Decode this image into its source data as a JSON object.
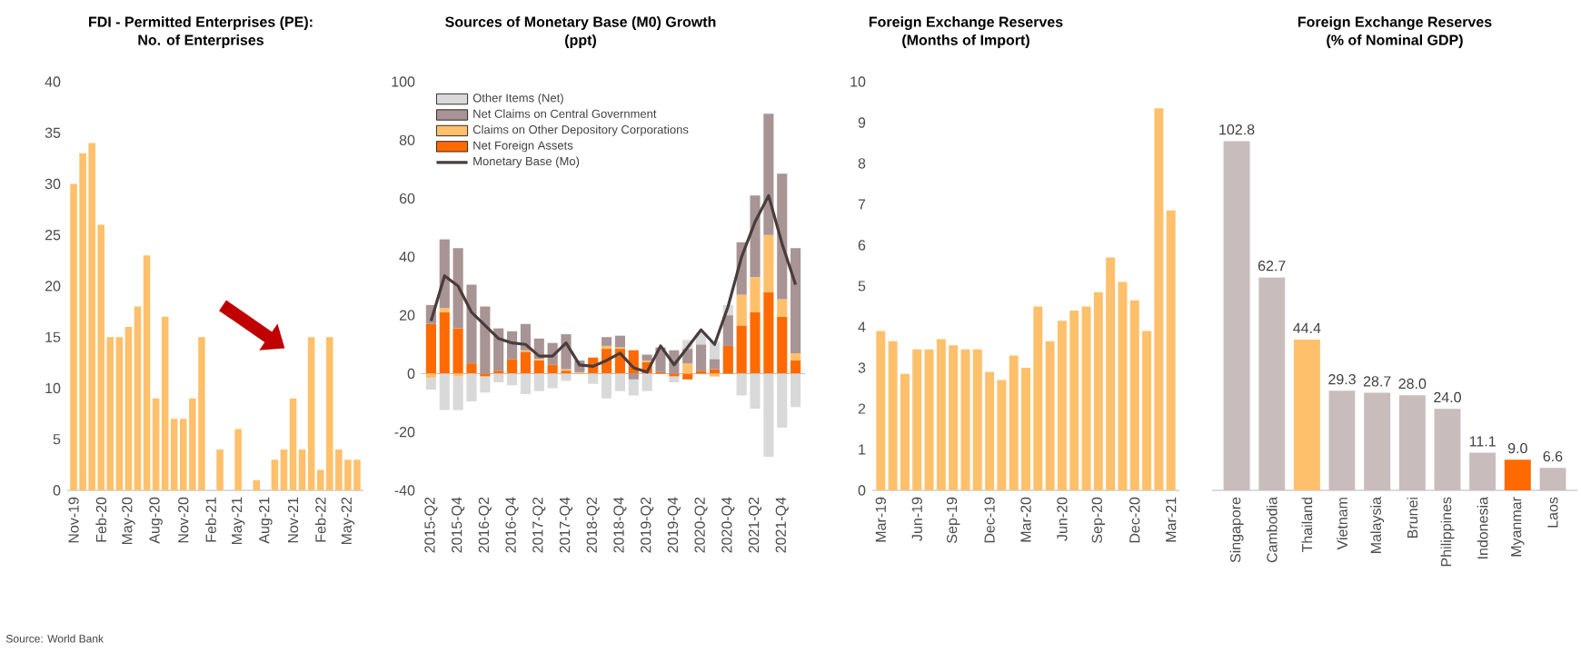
{
  "chart_data": [
    {
      "type": "bar",
      "title": "FDI - Permitted Enterprises (PE):",
      "subtitle": "No. of Enterprises",
      "categories": [
        "Nov-19",
        null,
        null,
        "Feb-20",
        null,
        null,
        "May-20",
        null,
        null,
        "Aug-20",
        null,
        null,
        "Nov-20",
        null,
        null,
        "Feb-21",
        null,
        null,
        "May-21",
        null,
        null,
        "Aug-21",
        null,
        null,
        "Nov-21",
        null,
        null,
        "Feb-22",
        null,
        null,
        "May-22",
        null
      ],
      "values": [
        30,
        33,
        34,
        26,
        15,
        15,
        16,
        18,
        23,
        9,
        17,
        7,
        7,
        9,
        15,
        0,
        4,
        0,
        6,
        0,
        1,
        0,
        3,
        4,
        9,
        4,
        15,
        2,
        15,
        4,
        3,
        3
      ],
      "color": "#ffc06b",
      "ylim": [
        0,
        40
      ],
      "yticks": [
        0,
        5,
        10,
        15,
        20,
        25,
        30,
        35,
        40
      ],
      "annotations": [
        "Source: World Bank"
      ]
    },
    {
      "type": "bar",
      "title": "Sources of Monetary Base (M0) Growth",
      "subtitle": "(ppt)",
      "stacked": true,
      "legend": "top left",
      "categories": [
        "2015-Q2",
        null,
        "2015-Q4",
        null,
        "2016-Q2",
        null,
        "2016-Q4",
        null,
        "2017-Q2",
        null,
        "2017-Q4",
        null,
        "2018-Q2",
        null,
        "2018-Q4",
        null,
        "2019-Q2",
        null,
        "2019-Q4",
        null,
        "2020-Q2",
        null,
        "2020-Q4",
        null,
        "2021-Q2",
        null,
        "2021-Q4",
        null
      ],
      "series": [
        {
          "name": "Net Foreign Assets",
          "color": "#ff6a00",
          "values": [
            17,
            21,
            15.5,
            3.5,
            -1,
            1,
            5,
            7.5,
            4.5,
            3,
            1,
            0,
            5.5,
            8.5,
            8.5,
            8,
            4,
            0.5,
            -1,
            -2,
            1,
            1.5,
            9.5,
            16.5,
            21,
            28,
            19.5,
            4.5
          ]
        },
        {
          "name": "Claims on Other Depository Corporations",
          "color": "#ffc06b",
          "values": [
            -1.5,
            1.5,
            -1,
            0,
            0,
            0,
            0,
            0.5,
            0.5,
            0,
            0.5,
            0.5,
            0,
            1,
            0.5,
            0,
            0.5,
            0,
            0,
            3.5,
            0,
            -1,
            0,
            10.5,
            12,
            19.5,
            6,
            2.5
          ]
        },
        {
          "name": "Net Claims on Central Government",
          "color": "#a89494",
          "values": [
            6.5,
            23.5,
            27.5,
            27,
            23,
            14.5,
            9.5,
            9,
            7,
            7.5,
            12,
            4,
            0,
            3,
            4,
            -2,
            2,
            8.5,
            8,
            5,
            9,
            3.5,
            10.5,
            18,
            28,
            41.5,
            43,
            36
          ]
        },
        {
          "name": "Other Items (Net)",
          "color": "#d9d9d9",
          "values": [
            -4,
            -12.5,
            -11.5,
            -9.5,
            -5.5,
            -3,
            -4,
            -7,
            -6,
            -5,
            -2.5,
            null,
            -3.5,
            -8.5,
            -6,
            -5.5,
            -6,
            null,
            -2,
            3,
            4,
            6,
            3.5,
            -7.5,
            -12,
            -28.5,
            -18.5,
            -11.5
          ]
        },
        {
          "name": "Monetary Base (Mo)",
          "type": "line",
          "color": "#4a3c3c",
          "values": [
            18,
            33.5,
            30,
            21,
            16.5,
            12,
            10.5,
            10,
            6,
            6,
            10.5,
            3,
            2.5,
            4.5,
            7,
            2,
            0.5,
            9.5,
            3,
            9,
            15,
            10,
            23,
            40,
            52,
            61,
            44.5,
            30.5
          ]
        }
      ],
      "ylim": [
        -40,
        100
      ],
      "yticks": [
        -40,
        -20,
        0,
        20,
        40,
        60,
        80,
        100
      ]
    },
    {
      "type": "bar",
      "title": "Foreign Exchange Reserves",
      "subtitle": "(Months of Import)",
      "categories": [
        "Mar-19",
        null,
        null,
        "Jun-19",
        null,
        null,
        "Sep-19",
        null,
        null,
        "Dec-19",
        null,
        null,
        "Mar-20",
        null,
        null,
        "Jun-20",
        null,
        null,
        "Sep-20",
        null,
        null,
        "Dec-20",
        null,
        null,
        "Mar-21"
      ],
      "values": [
        3.9,
        3.65,
        2.85,
        3.45,
        3.45,
        3.7,
        3.55,
        3.45,
        3.45,
        2.9,
        2.7,
        3.3,
        3.0,
        4.5,
        3.65,
        4.15,
        4.4,
        4.5,
        4.85,
        5.7,
        5.1,
        4.65,
        3.9,
        9.35,
        6.85
      ],
      "color": "#ffc06b",
      "ylim": [
        0,
        10
      ],
      "yticks": [
        0,
        1,
        2,
        3,
        4,
        5,
        6,
        7,
        8,
        9,
        10
      ]
    },
    {
      "type": "bar",
      "title": "Foreign Exchange Reserves",
      "subtitle": "(% of Nominal GDP)",
      "categories": [
        "Singapore",
        "Cambodia",
        "Thailand",
        "Vietnam",
        "Malaysia",
        "Brunei",
        "Philippines",
        "Indonesia",
        "Myanmar",
        "Laos"
      ],
      "values": [
        102.8,
        62.7,
        44.4,
        29.3,
        28.7,
        28.0,
        24.0,
        11.1,
        9.0,
        6.6
      ],
      "colors": [
        "#c9bcbc",
        "#c9bcbc",
        "#ffc06b",
        "#c9bcbc",
        "#c9bcbc",
        "#c9bcbc",
        "#c9bcbc",
        "#c9bcbc",
        "#ff6a00",
        "#c9bcbc"
      ],
      "value_labels": [
        "102.8",
        "62.7",
        "44.4",
        "29.3",
        "28.7",
        "28.0",
        "24.0",
        "11.1",
        "9.0",
        "6.6"
      ],
      "tick_labels": "x"
    }
  ]
}
